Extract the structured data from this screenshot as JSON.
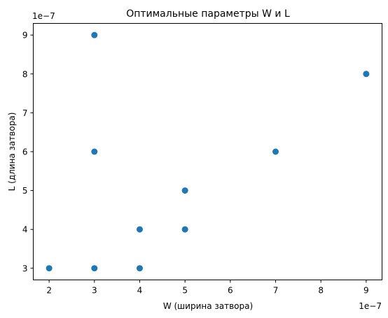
{
  "chart_data": {
    "type": "scatter",
    "title": "Оптимальные параметры W и L",
    "xlabel": "W (ширина затвора)",
    "ylabel": "L (длина затвора)",
    "x_offset_label": "1e−7",
    "y_offset_label": "1e−7",
    "xlim": [
      1.65,
      9.35
    ],
    "ylim": [
      2.7,
      9.3
    ],
    "x_ticks": [
      2,
      3,
      4,
      5,
      6,
      7,
      8,
      9
    ],
    "y_ticks": [
      3,
      4,
      5,
      6,
      7,
      8,
      9
    ],
    "x_tick_labels": [
      "2",
      "3",
      "4",
      "5",
      "6",
      "7",
      "8",
      "9"
    ],
    "y_tick_labels": [
      "3",
      "4",
      "5",
      "6",
      "7",
      "8",
      "9"
    ],
    "grid": false,
    "marker_color": "#1f77b4",
    "points": [
      {
        "x": 3,
        "y": 9
      },
      {
        "x": 9,
        "y": 8
      },
      {
        "x": 3,
        "y": 6
      },
      {
        "x": 7,
        "y": 6
      },
      {
        "x": 5,
        "y": 5
      },
      {
        "x": 4,
        "y": 4
      },
      {
        "x": 5,
        "y": 4
      },
      {
        "x": 2,
        "y": 3
      },
      {
        "x": 3,
        "y": 3
      },
      {
        "x": 4,
        "y": 3
      }
    ]
  }
}
